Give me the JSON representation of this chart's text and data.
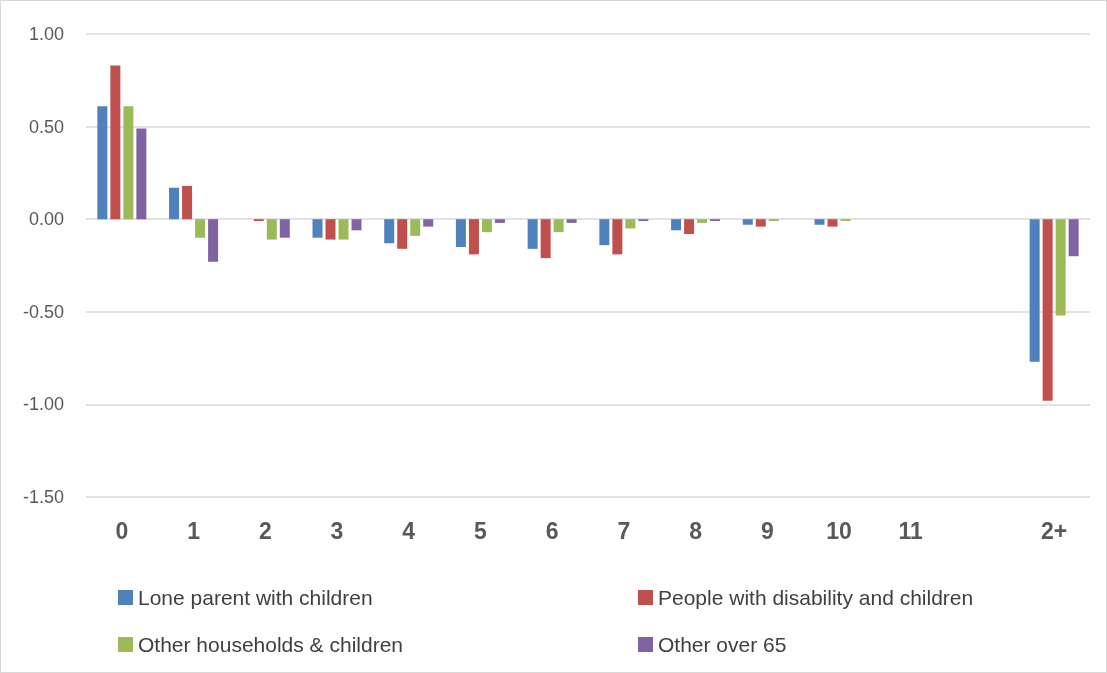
{
  "chart_data": {
    "type": "bar",
    "categories": [
      "0",
      "1",
      "2",
      "3",
      "4",
      "5",
      "6",
      "7",
      "8",
      "9",
      "10",
      "11",
      null,
      "2+"
    ],
    "series": [
      {
        "name": "Lone parent with children",
        "color": "#4f81bd",
        "values": [
          0.61,
          0.17,
          0.0,
          -0.1,
          -0.13,
          -0.15,
          -0.16,
          -0.14,
          -0.06,
          -0.03,
          -0.03,
          0,
          null,
          -0.77
        ]
      },
      {
        "name": "People with disability and children",
        "color": "#c0504d",
        "values": [
          0.83,
          0.18,
          -0.01,
          -0.11,
          -0.16,
          -0.19,
          -0.21,
          -0.19,
          -0.08,
          -0.04,
          -0.04,
          0,
          null,
          -0.98
        ]
      },
      {
        "name": "Other households & children",
        "color": "#9bbb59",
        "values": [
          0.61,
          -0.1,
          -0.11,
          -0.11,
          -0.09,
          -0.07,
          -0.07,
          -0.05,
          -0.02,
          -0.01,
          -0.01,
          0,
          null,
          -0.52
        ]
      },
      {
        "name": "Other over 65",
        "color": "#8064a2",
        "values": [
          0.49,
          -0.23,
          -0.1,
          -0.06,
          -0.04,
          -0.02,
          -0.02,
          -0.01,
          -0.01,
          0,
          0,
          0,
          null,
          -0.2
        ]
      }
    ],
    "ylim": [
      -1.5,
      1.0
    ],
    "yticks": [
      {
        "value": -1.5,
        "label": "-1.50"
      },
      {
        "value": -1.0,
        "label": "-1.00"
      },
      {
        "value": -0.5,
        "label": "-0.50"
      },
      {
        "value": 0,
        "label": "0.00"
      },
      {
        "value": 0.5,
        "label": "0.50"
      },
      {
        "value": 1.0,
        "label": "1.00"
      }
    ],
    "grid": "y",
    "legend": "bottom"
  }
}
